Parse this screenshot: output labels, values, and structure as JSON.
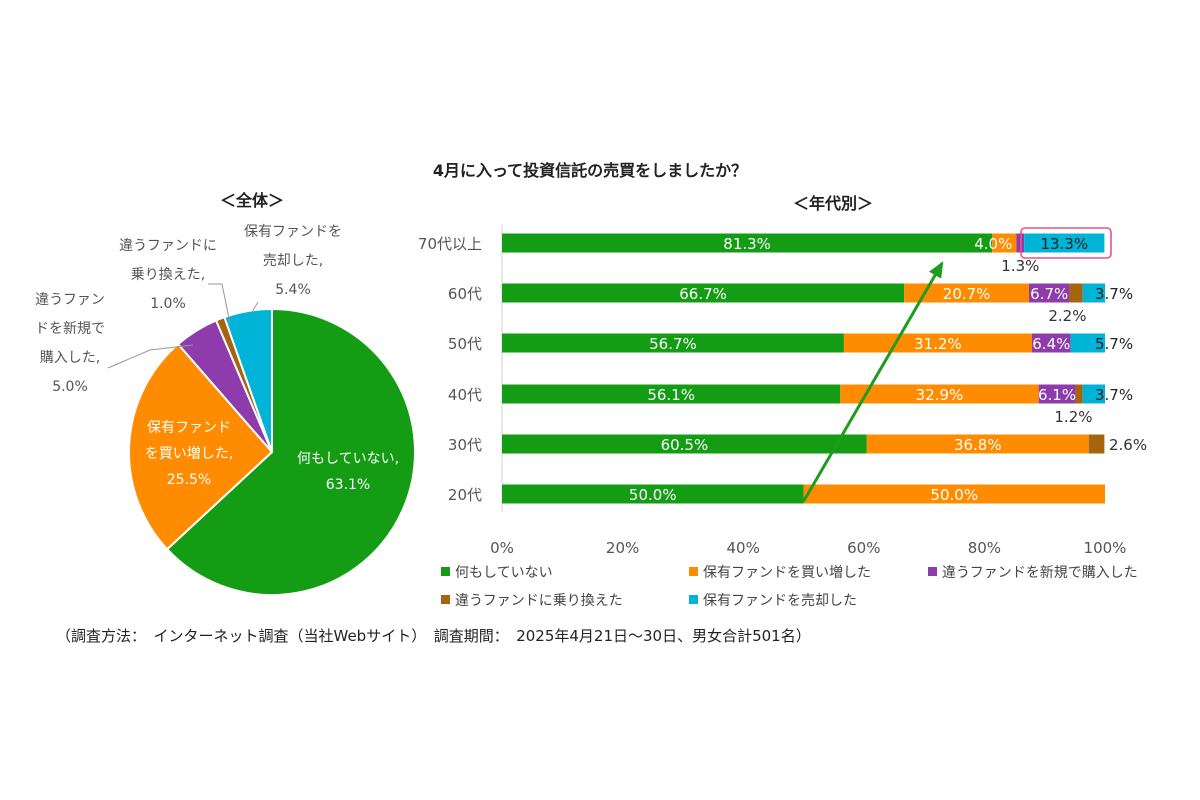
{
  "title": "4月に入って投資信託の売買をしましたか？",
  "footnote": "（調査方法：　インターネット調査（当社Webサイト）　調査期間：　2025年4月21日～30日、男女合計501名）",
  "colors": {
    "none": "#159c15",
    "buy_more": "#ff8c00",
    "new_buy": "#8e3bac",
    "switch": "#a6640f",
    "sell": "#00b4d8",
    "arrow": "#1f9b1f",
    "highlight": "#e8508a"
  },
  "chart_data": [
    {
      "type": "pie",
      "title": "＜全体＞",
      "slices": [
        {
          "key": "none",
          "label_lines": [
            "何もしていない,"
          ],
          "value": 63.1,
          "value_label": "63.1%"
        },
        {
          "key": "buy_more",
          "label_lines": [
            "保有ファンド",
            "を買い増した,"
          ],
          "value": 25.5,
          "value_label": "25.5%"
        },
        {
          "key": "new_buy",
          "label_lines": [
            "違うファン",
            "ドを新規で",
            "購入した,"
          ],
          "value": 5.0,
          "value_label": "5.0%"
        },
        {
          "key": "switch",
          "label_lines": [
            "違うファンドに",
            "乗り換えた,"
          ],
          "value": 1.0,
          "value_label": "1.0%"
        },
        {
          "key": "sell",
          "label_lines": [
            "保有ファンドを",
            "売却した,"
          ],
          "value": 5.4,
          "value_label": "5.4%"
        }
      ]
    },
    {
      "type": "bar",
      "orientation": "horizontal-stacked-100",
      "title": "＜年代別＞",
      "categories": [
        "70代以上",
        "60代",
        "50代",
        "40代",
        "30代",
        "20代"
      ],
      "series": [
        {
          "key": "none",
          "name": "何もしていない",
          "values": [
            81.3,
            66.7,
            56.7,
            56.1,
            60.5,
            50.0
          ]
        },
        {
          "key": "buy_more",
          "name": "保有ファンドを買い増した",
          "values": [
            4.0,
            20.7,
            31.2,
            32.9,
            36.8,
            50.0
          ]
        },
        {
          "key": "new_buy",
          "name": "違うファンドを新規で購入した",
          "values": [
            1.3,
            6.7,
            6.4,
            6.1,
            0,
            0
          ]
        },
        {
          "key": "switch",
          "name": "違うファンドに乗り換えた",
          "values": [
            0,
            2.2,
            0,
            1.2,
            2.6,
            0
          ]
        },
        {
          "key": "sell",
          "name": "保有ファンドを売却した",
          "values": [
            13.3,
            3.7,
            5.7,
            3.7,
            0,
            0
          ]
        }
      ],
      "value_labels": [
        [
          "81.3%",
          "4.0%",
          "1.3%",
          null,
          "13.3%"
        ],
        [
          "66.7%",
          "20.7%",
          "6.7%",
          "2.2%",
          "3.7%"
        ],
        [
          "56.7%",
          "31.2%",
          "6.4%",
          null,
          "5.7%"
        ],
        [
          "56.1%",
          "32.9%",
          "6.1%",
          "1.2%",
          "3.7%"
        ],
        [
          "60.5%",
          "36.8%",
          null,
          "2.6%",
          null
        ],
        [
          "50.0%",
          "50.0%",
          null,
          null,
          null
        ]
      ],
      "x_ticks": [
        "0%",
        "20%",
        "40%",
        "60%",
        "80%",
        "100%"
      ],
      "xlim": [
        0,
        100
      ],
      "legend": [
        {
          "key": "none",
          "label": "何もしていない"
        },
        {
          "key": "buy_more",
          "label": "保有ファンドを買い増した"
        },
        {
          "key": "new_buy",
          "label": "違うファンドを新規で購入した"
        },
        {
          "key": "switch",
          "label": "違うファンドに乗り換えた"
        },
        {
          "key": "sell",
          "label": "保有ファンドを売却した"
        }
      ],
      "annotation": {
        "arrow_from": {
          "category": "20代",
          "value": 50.0
        },
        "arrow_to": {
          "category": "70代以上",
          "value": 73
        },
        "highlight": "70代以上 保有ファンドを売却した 13.3%"
      }
    }
  ]
}
